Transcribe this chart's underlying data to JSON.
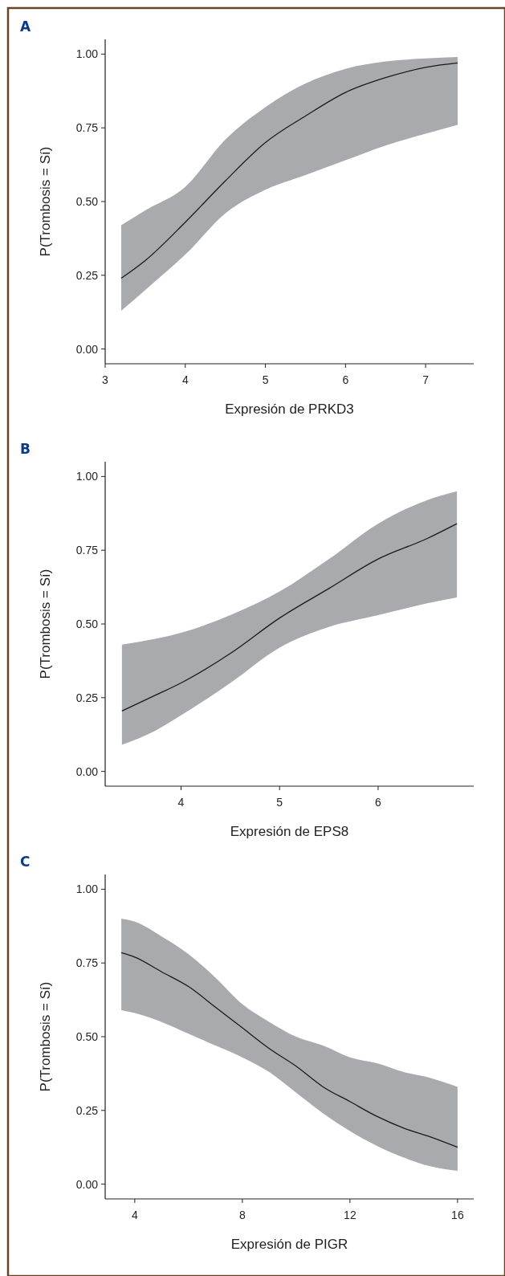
{
  "chart_data": [
    {
      "type": "line",
      "title": "A",
      "xlabel": "Expresión de PRKD3",
      "ylabel": "P(Trombosis = Sí)",
      "xlim": [
        3,
        7.6
      ],
      "xticks": [
        3,
        4,
        5,
        6,
        7
      ],
      "ylim": [
        -0.05,
        1.05
      ],
      "yticks": [
        {
          "value": 0,
          "label": "0.00"
        },
        {
          "value": 0.25,
          "label": "0.25"
        },
        {
          "value": 0.5,
          "label": "0.50"
        },
        {
          "value": 0.75,
          "label": "0.75"
        },
        {
          "value": 1,
          "label": "1.00"
        }
      ],
      "series": [
        {
          "color": "#1a1a1a",
          "x": [
            3.2,
            3.5,
            4,
            4.5,
            5,
            5.5,
            6,
            6.5,
            7,
            7.4
          ],
          "values": [
            0.24,
            0.3,
            0.43,
            0.57,
            0.7,
            0.79,
            0.87,
            0.92,
            0.955,
            0.97
          ],
          "lower": [
            0.13,
            0.2,
            0.32,
            0.46,
            0.54,
            0.59,
            0.64,
            0.69,
            0.73,
            0.76
          ],
          "upper": [
            0.42,
            0.47,
            0.55,
            0.71,
            0.82,
            0.9,
            0.95,
            0.975,
            0.985,
            0.99
          ]
        }
      ]
    },
    {
      "type": "line",
      "title": "B",
      "xlabel": "Expresión de EPS8",
      "ylabel": "P(Trombosis = Sí)",
      "xlim": [
        3.23,
        6.97
      ],
      "xticks": [
        4,
        5,
        6
      ],
      "ylim": [
        -0.05,
        1.05
      ],
      "yticks": [
        {
          "value": 0,
          "label": "0.00"
        },
        {
          "value": 0.25,
          "label": "0.25"
        },
        {
          "value": 0.5,
          "label": "0.50"
        },
        {
          "value": 0.75,
          "label": "0.75"
        },
        {
          "value": 1,
          "label": "1.00"
        }
      ],
      "series": [
        {
          "color": "#1a1a1a",
          "x": [
            3.4,
            3.75,
            4,
            4.5,
            5,
            5.5,
            6,
            6.5,
            6.8
          ],
          "values": [
            0.205,
            0.26,
            0.3,
            0.4,
            0.52,
            0.62,
            0.72,
            0.79,
            0.84
          ],
          "lower": [
            0.09,
            0.14,
            0.19,
            0.3,
            0.42,
            0.49,
            0.53,
            0.57,
            0.59
          ],
          "upper": [
            0.43,
            0.45,
            0.47,
            0.53,
            0.61,
            0.72,
            0.84,
            0.92,
            0.95
          ]
        }
      ]
    },
    {
      "type": "line",
      "title": "C",
      "xlabel": "Expresión de PIGR",
      "ylabel": "P(Trombosis = Sí)",
      "xlim": [
        2.9,
        16.6
      ],
      "xticks": [
        4,
        8,
        12,
        16
      ],
      "ylim": [
        -0.05,
        1.05
      ],
      "yticks": [
        {
          "value": 0,
          "label": "0.00"
        },
        {
          "value": 0.25,
          "label": "0.25"
        },
        {
          "value": 0.5,
          "label": "0.50"
        },
        {
          "value": 0.75,
          "label": "0.75"
        },
        {
          "value": 1,
          "label": "1.00"
        }
      ],
      "series": [
        {
          "color": "#1a1a1a",
          "x": [
            3.5,
            4,
            5,
            6,
            7,
            8,
            9,
            10,
            11,
            12,
            13,
            14,
            15,
            16
          ],
          "values": [
            0.785,
            0.77,
            0.72,
            0.67,
            0.6,
            0.53,
            0.46,
            0.4,
            0.33,
            0.28,
            0.23,
            0.19,
            0.16,
            0.125
          ],
          "lower": [
            0.59,
            0.58,
            0.55,
            0.51,
            0.47,
            0.43,
            0.38,
            0.31,
            0.24,
            0.18,
            0.13,
            0.09,
            0.06,
            0.045
          ],
          "upper": [
            0.9,
            0.89,
            0.84,
            0.78,
            0.7,
            0.61,
            0.55,
            0.5,
            0.47,
            0.43,
            0.41,
            0.38,
            0.36,
            0.33
          ]
        }
      ]
    }
  ]
}
